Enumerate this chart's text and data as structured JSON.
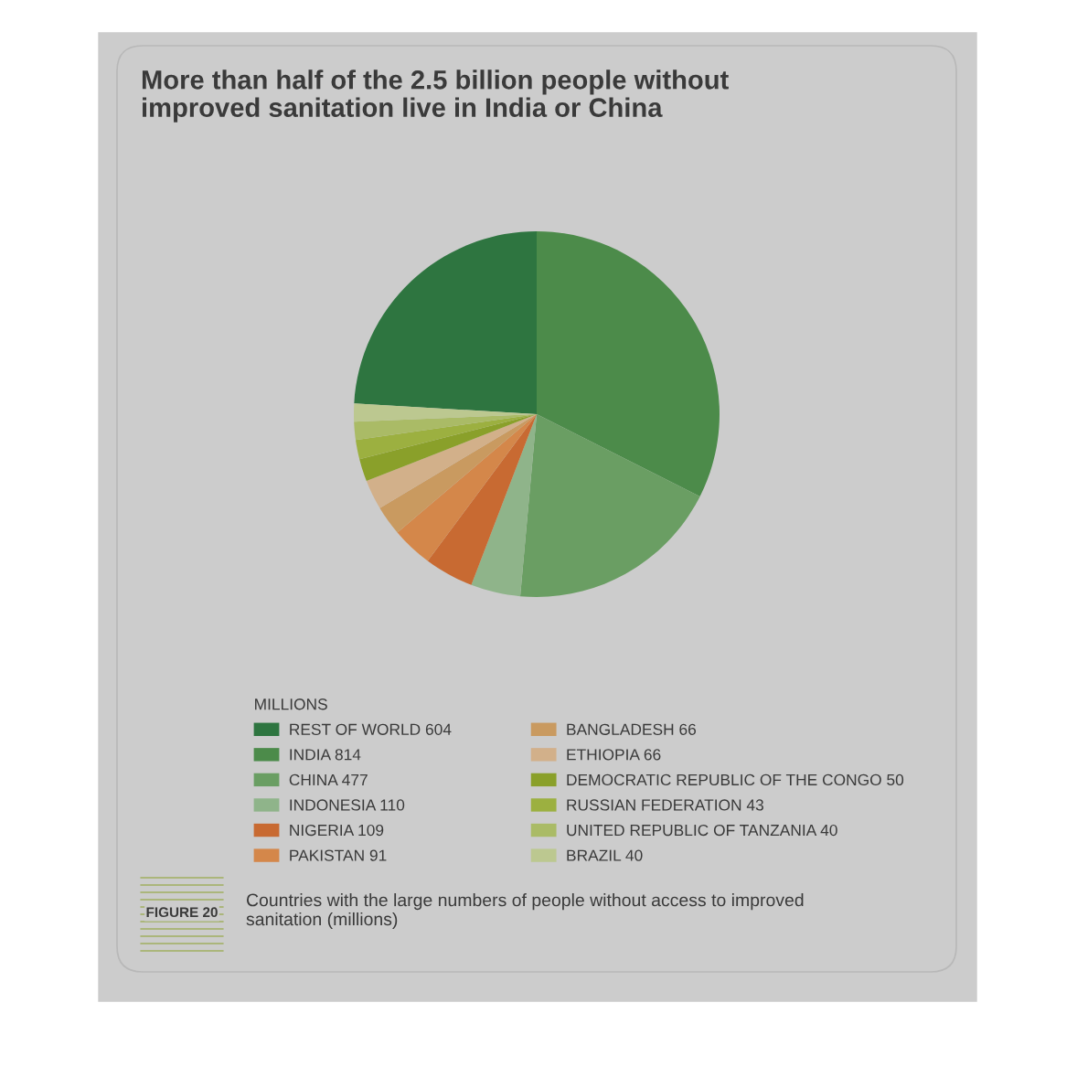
{
  "chart_data": {
    "type": "pie",
    "title": "More than half of the 2.5 billion people without\nimproved sanitation live in India or China",
    "categories": [
      "REST OF WORLD",
      "INDIA",
      "CHINA",
      "INDONESIA",
      "NIGERIA",
      "PAKISTAN",
      "BANGLADESH",
      "ETHIOPIA",
      "DEMOCRATIC REPUBLIC OF THE CONGO",
      "RUSSIAN FEDERATION",
      "UNITED REPUBLIC OF TANZANIA",
      "BRAZIL"
    ],
    "values": [
      604,
      814,
      477,
      110,
      109,
      91,
      66,
      66,
      50,
      43,
      40,
      40
    ],
    "value_labels": [
      "604",
      "814",
      "477",
      "110",
      "109",
      "91",
      "66",
      "66",
      "50",
      "43",
      "40",
      "40"
    ],
    "colors": [
      "#2e7540",
      "#4c8b4a",
      "#6a9e63",
      "#8fb48a",
      "#c86a32",
      "#d4874a",
      "#c99a60",
      "#d2b08a",
      "#8aa02a",
      "#9cb040",
      "#aabb66",
      "#bcc890"
    ],
    "legend": "bottom",
    "legend_title": "MILLIONS",
    "annotations": [
      "FIGURE 20",
      "Countries with the large numbers of people without access to improved sanitation (millions)"
    ]
  }
}
